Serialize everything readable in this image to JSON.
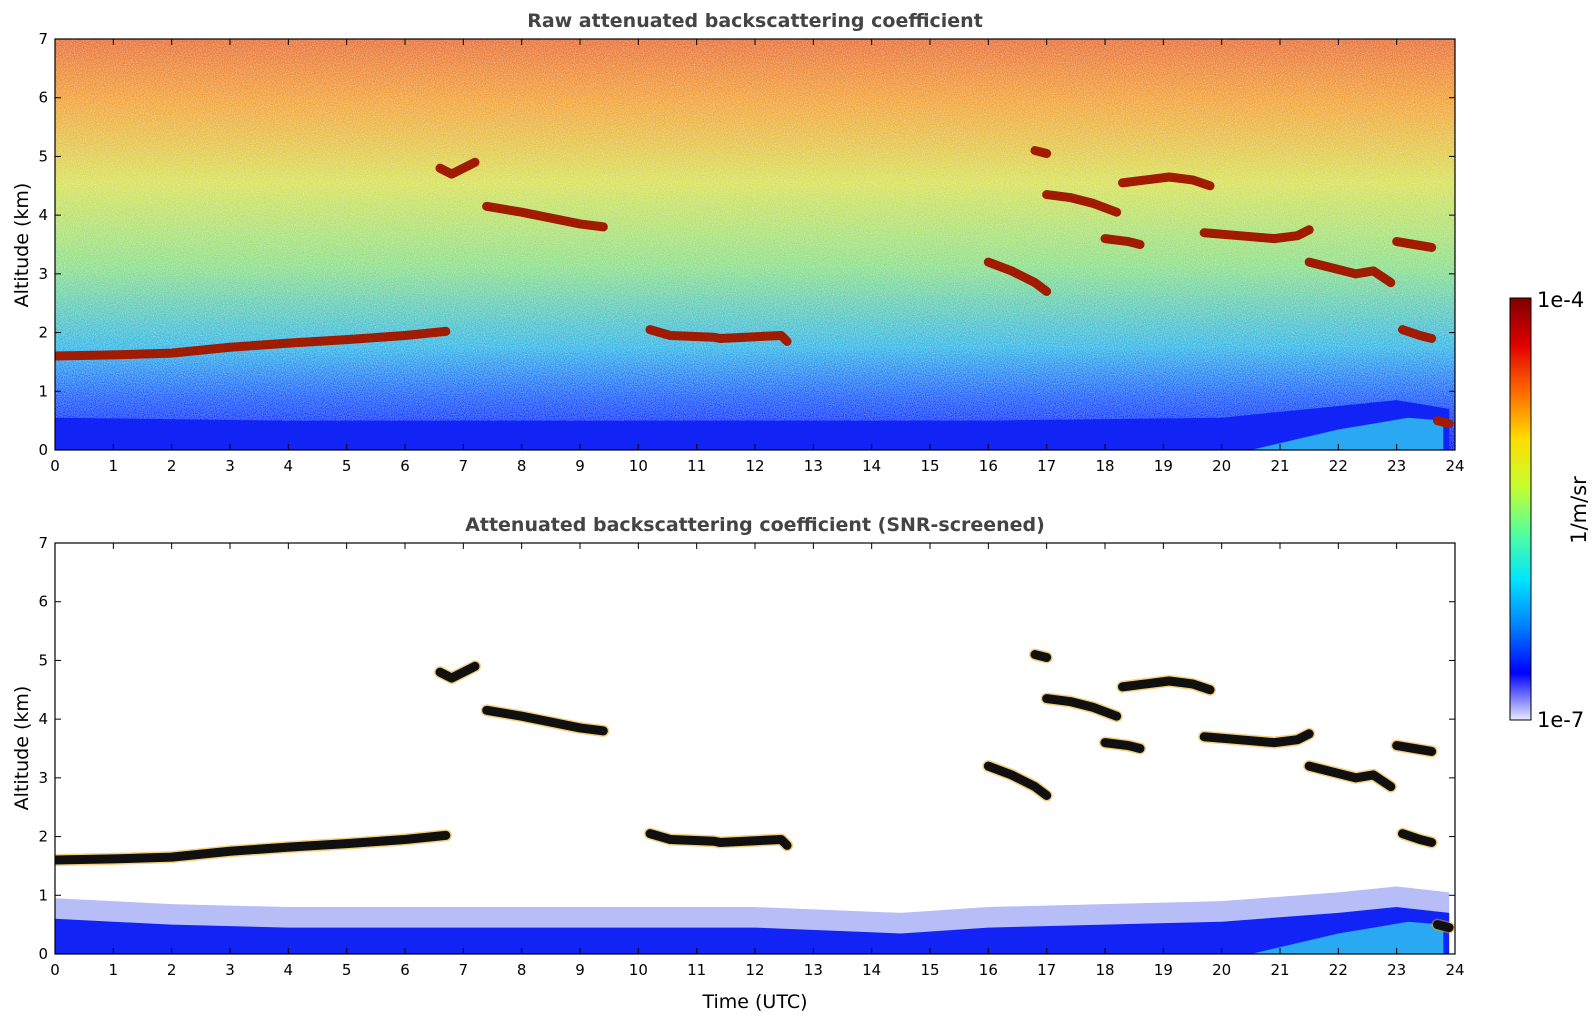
{
  "chart_data": [
    {
      "type": "heatmap",
      "title": "Raw attenuated backscattering coefficient",
      "xlabel": "",
      "ylabel": "Altitude (km)",
      "xlim": [
        0,
        24
      ],
      "ylim": [
        0,
        7
      ],
      "xticks": [
        "0",
        "1",
        "2",
        "3",
        "4",
        "5",
        "6",
        "7",
        "8",
        "9",
        "10",
        "11",
        "12",
        "13",
        "14",
        "15",
        "16",
        "17",
        "18",
        "19",
        "20",
        "21",
        "22",
        "23",
        "24"
      ],
      "yticks": [
        "0",
        "1",
        "2",
        "3",
        "4",
        "5",
        "6",
        "7"
      ],
      "features": {
        "boundary_layer_top_km": [
          [
            0,
            0.55
          ],
          [
            4,
            0.5
          ],
          [
            8,
            0.5
          ],
          [
            12,
            0.5
          ],
          [
            16,
            0.5
          ],
          [
            20,
            0.55
          ],
          [
            22,
            0.75
          ],
          [
            23,
            0.85
          ],
          [
            23.9,
            0.7
          ]
        ],
        "noise_gradient": "signal decreases with altitude; upper levels dominated by noisy yellow-red speckle",
        "cloud_layers": [
          {
            "x": [
              0.0,
              1.0,
              2.0,
              3.0,
              4.0,
              5.0,
              6.0,
              6.7
            ],
            "y": [
              1.6,
              1.62,
              1.65,
              1.75,
              1.82,
              1.88,
              1.95,
              2.02
            ]
          },
          {
            "x": [
              6.6,
              6.8,
              7.0,
              7.2
            ],
            "y": [
              4.8,
              4.7,
              4.8,
              4.9
            ]
          },
          {
            "x": [
              7.4,
              8.0,
              8.5,
              9.0,
              9.4
            ],
            "y": [
              4.15,
              4.05,
              3.95,
              3.85,
              3.8
            ]
          },
          {
            "x": [
              10.2,
              10.55,
              11.3,
              11.4,
              12.45,
              12.55
            ],
            "y": [
              2.05,
              1.95,
              1.92,
              1.9,
              1.95,
              1.85
            ]
          },
          {
            "x": [
              16.0,
              16.4,
              16.8,
              17.0
            ],
            "y": [
              3.2,
              3.05,
              2.85,
              2.7
            ]
          },
          {
            "x": [
              16.8,
              17.0
            ],
            "y": [
              5.1,
              5.05
            ]
          },
          {
            "x": [
              17.0,
              17.4,
              17.8,
              18.2
            ],
            "y": [
              4.35,
              4.3,
              4.2,
              4.05
            ]
          },
          {
            "x": [
              18.0,
              18.4,
              18.6
            ],
            "y": [
              3.6,
              3.55,
              3.5
            ]
          },
          {
            "x": [
              18.3,
              18.7,
              19.1,
              19.5,
              19.8
            ],
            "y": [
              4.55,
              4.6,
              4.65,
              4.6,
              4.5
            ]
          },
          {
            "x": [
              19.7,
              20.3,
              20.9,
              21.3,
              21.5
            ],
            "y": [
              3.7,
              3.65,
              3.6,
              3.65,
              3.75
            ]
          },
          {
            "x": [
              21.5,
              21.9,
              22.3,
              22.6,
              22.9
            ],
            "y": [
              3.2,
              3.1,
              3.0,
              3.05,
              2.85
            ]
          },
          {
            "x": [
              23.0,
              23.3,
              23.6
            ],
            "y": [
              3.55,
              3.5,
              3.45
            ]
          },
          {
            "x": [
              23.1,
              23.4,
              23.6
            ],
            "y": [
              2.05,
              1.95,
              1.9
            ]
          },
          {
            "x": [
              23.7,
              23.9
            ],
            "y": [
              0.5,
              0.45
            ]
          }
        ]
      }
    },
    {
      "type": "heatmap",
      "title": "Attenuated backscattering coefficient (SNR-screened)",
      "xlabel": "Time (UTC)",
      "ylabel": "Altitude (km)",
      "xlim": [
        0,
        24
      ],
      "ylim": [
        0,
        7
      ],
      "xticks": [
        "0",
        "1",
        "2",
        "3",
        "4",
        "5",
        "6",
        "7",
        "8",
        "9",
        "10",
        "11",
        "12",
        "13",
        "14",
        "15",
        "16",
        "17",
        "18",
        "19",
        "20",
        "21",
        "22",
        "23",
        "24"
      ],
      "yticks": [
        "0",
        "1",
        "2",
        "3",
        "4",
        "5",
        "6",
        "7"
      ],
      "features": {
        "boundary_layer_top_km": [
          [
            0,
            0.6
          ],
          [
            2,
            0.5
          ],
          [
            4,
            0.45
          ],
          [
            8,
            0.45
          ],
          [
            12,
            0.45
          ],
          [
            14.5,
            0.35
          ],
          [
            16,
            0.45
          ],
          [
            20,
            0.55
          ],
          [
            22,
            0.7
          ],
          [
            23,
            0.8
          ],
          [
            23.9,
            0.7
          ]
        ],
        "screening": "pixels below the SNR threshold are white; strong clouds appear black with colored edges"
      }
    }
  ],
  "colorbar": {
    "label": "1/m/sr",
    "max_label": "1e-4",
    "min_label": "1e-7",
    "colormap": "jet",
    "colors": [
      "#e8ecff",
      "#0000ff",
      "#0080ff",
      "#00e5ff",
      "#55ff9a",
      "#c8ff2e",
      "#ffdd00",
      "#ff6a00",
      "#e00000",
      "#7f0000"
    ]
  }
}
